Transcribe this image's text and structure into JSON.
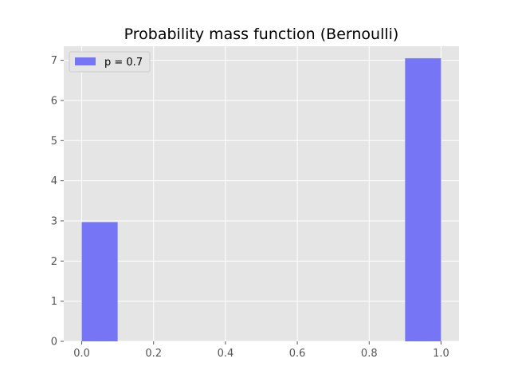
{
  "chart_data": {
    "type": "bar",
    "title": "Probability mass function (Bernoulli)",
    "xlabel": "",
    "ylabel": "",
    "xlim": [
      -0.05,
      1.05
    ],
    "ylim": [
      0,
      7.35
    ],
    "x_ticks": [
      0.0,
      0.2,
      0.4,
      0.6,
      0.8,
      1.0
    ],
    "x_tick_labels": [
      "0.0",
      "0.2",
      "0.4",
      "0.6",
      "0.8",
      "1.0"
    ],
    "y_ticks": [
      0,
      1,
      2,
      3,
      4,
      5,
      6,
      7
    ],
    "y_tick_labels": [
      "0",
      "1",
      "2",
      "3",
      "4",
      "5",
      "6",
      "7"
    ],
    "bars": [
      {
        "x_start": 0.0,
        "x_end": 0.1,
        "value": 2.97
      },
      {
        "x_start": 0.9,
        "x_end": 1.0,
        "value": 7.05
      }
    ],
    "series": [
      {
        "name": "p = 0.7",
        "color": "#7575f5"
      }
    ],
    "grid": true,
    "legend_position": "top-left",
    "colors": {
      "plot_background": "#e5e5e5",
      "grid": "#ffffff",
      "bar": "#7575f5",
      "text": "#000000",
      "tick_label": "#555555"
    }
  }
}
